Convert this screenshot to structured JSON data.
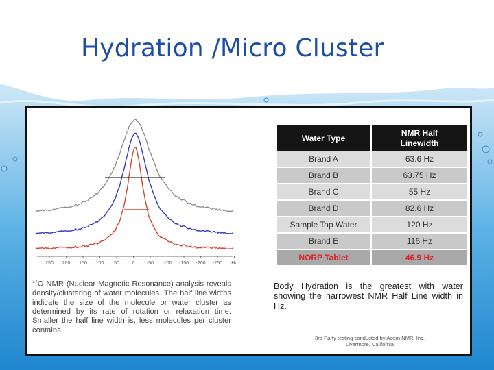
{
  "slide": {
    "title": "Hydration /Micro Cluster"
  },
  "spectrum": {
    "x_ticks": [
      "250",
      "200",
      "150",
      "100",
      "50",
      "0",
      "-50",
      "-100",
      "-150",
      "-200",
      "-250",
      "Hz"
    ],
    "colors": {
      "top": "#8a8a8a",
      "middle": "#2f3fb4",
      "bottom": "#d8452f"
    }
  },
  "caption": {
    "superscript": "17",
    "text": "O NMR (Nuclear Magnetic Resonance) analysis reveals density/clustering of water molecules. The half line widths indicate the size of the molecule or water cluster as determined by its rate of rotation or relaxation time. Smaller the half line width is, less molecules per cluster contains."
  },
  "table": {
    "header_type": "Water Type",
    "header_nmr_line1": "NMR Half",
    "header_nmr_line2": "Linewidth",
    "rows": [
      {
        "type": "Brand A",
        "value": "63.6 Hz"
      },
      {
        "type": "Brand B",
        "value": "63.75 Hz"
      },
      {
        "type": "Brand C",
        "value": "55 Hz"
      },
      {
        "type": "Brand D",
        "value": "82.6 Hz"
      },
      {
        "type": "Sample Tap Water",
        "value": "120 Hz"
      },
      {
        "type": "Brand E",
        "value": "116 Hz"
      },
      {
        "type": "NORP Tablet",
        "value": "46.9 Hz"
      }
    ],
    "highlight_color": "#d8262a"
  },
  "note": {
    "text": "Body Hydration is the greatest with water showing the narrowest NMR Half Line width in Hz."
  },
  "credit": {
    "line1": "3rd Party testing conducted by Acorn NMR, Inc.",
    "line2": "Livermore, California"
  }
}
